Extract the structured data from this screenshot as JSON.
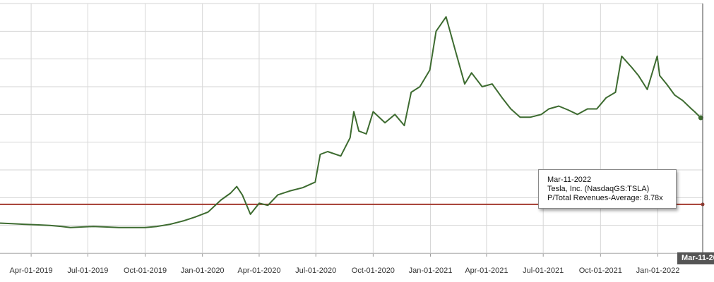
{
  "chart_data": {
    "type": "line",
    "series": [
      {
        "name": "Tesla, Inc. (NasdaqGS:TSLA)",
        "color": "#3d6b30",
        "x": [
          "2019-02-10",
          "2019-03-01",
          "2019-03-20",
          "2019-04-10",
          "2019-05-01",
          "2019-05-20",
          "2019-06-03",
          "2019-06-20",
          "2019-07-10",
          "2019-08-01",
          "2019-08-20",
          "2019-09-10",
          "2019-10-01",
          "2019-10-20",
          "2019-11-10",
          "2019-12-01",
          "2019-12-20",
          "2020-01-10",
          "2020-01-31",
          "2020-02-15",
          "2020-02-25",
          "2020-03-05",
          "2020-03-18",
          "2020-04-01",
          "2020-04-15",
          "2020-05-01",
          "2020-05-20",
          "2020-06-10",
          "2020-06-30",
          "2020-07-08",
          "2020-07-20",
          "2020-08-10",
          "2020-08-25",
          "2020-08-31",
          "2020-09-08",
          "2020-09-20",
          "2020-10-01",
          "2020-10-20",
          "2020-11-05",
          "2020-11-20",
          "2020-12-01",
          "2020-12-15",
          "2020-12-31",
          "2021-01-10",
          "2021-01-26",
          "2021-02-10",
          "2021-02-25",
          "2021-03-08",
          "2021-03-25",
          "2021-04-10",
          "2021-04-26",
          "2021-05-10",
          "2021-05-25",
          "2021-06-10",
          "2021-06-28",
          "2021-07-10",
          "2021-07-26",
          "2021-08-10",
          "2021-08-25",
          "2021-09-10",
          "2021-09-25",
          "2021-10-10",
          "2021-10-25",
          "2021-11-04",
          "2021-11-20",
          "2021-12-01",
          "2021-12-15",
          "2021-12-31",
          "2022-01-04",
          "2022-01-15",
          "2022-01-28",
          "2022-02-10",
          "2022-02-24",
          "2022-03-01",
          "2022-03-11"
        ],
        "y": [
          5.4,
          5.3,
          5.2,
          5.1,
          5.0,
          4.8,
          4.6,
          4.7,
          4.8,
          4.7,
          4.6,
          4.6,
          4.6,
          4.8,
          5.2,
          5.8,
          6.5,
          7.4,
          9.6,
          10.8,
          12.0,
          10.5,
          7.0,
          9.0,
          8.6,
          10.5,
          11.2,
          11.8,
          12.8,
          17.8,
          18.3,
          17.5,
          20.8,
          25.5,
          22.0,
          21.5,
          25.5,
          23.5,
          25.0,
          23.0,
          29.0,
          30.0,
          33.0,
          40.0,
          42.6,
          36.5,
          30.5,
          32.5,
          30.0,
          30.5,
          28.0,
          26.0,
          24.5,
          24.5,
          25.0,
          26.0,
          26.5,
          25.8,
          25.0,
          26.0,
          26.0,
          28.0,
          29.0,
          35.5,
          33.5,
          32.0,
          29.5,
          35.5,
          32.0,
          30.5,
          28.5,
          27.5,
          26.0,
          25.5,
          24.4
        ]
      }
    ],
    "reference_line": {
      "label": "P/Total Revenues-Average",
      "value": 8.78,
      "color": "#a33a2f"
    },
    "xticks": [
      "Apr-01-2019",
      "Jul-01-2019",
      "Oct-01-2019",
      "Jan-01-2020",
      "Apr-01-2020",
      "Jul-01-2020",
      "Oct-01-2020",
      "Jan-01-2021",
      "Apr-01-2021",
      "Jul-01-2021",
      "Oct-01-2021",
      "Jan-01-2022"
    ],
    "xlim": [
      "2019-02-10",
      "2022-03-14"
    ],
    "ylim": [
      0,
      45
    ],
    "grid": true,
    "title": "",
    "xlabel": "",
    "ylabel": ""
  },
  "tooltip": {
    "date": "Mar-11-2022",
    "company": "Tesla, Inc. (NasdaqGS:TSLA)",
    "metric": "P/Total Revenues-Average: 8.78x"
  },
  "cursor_label": "Mar-11-20"
}
